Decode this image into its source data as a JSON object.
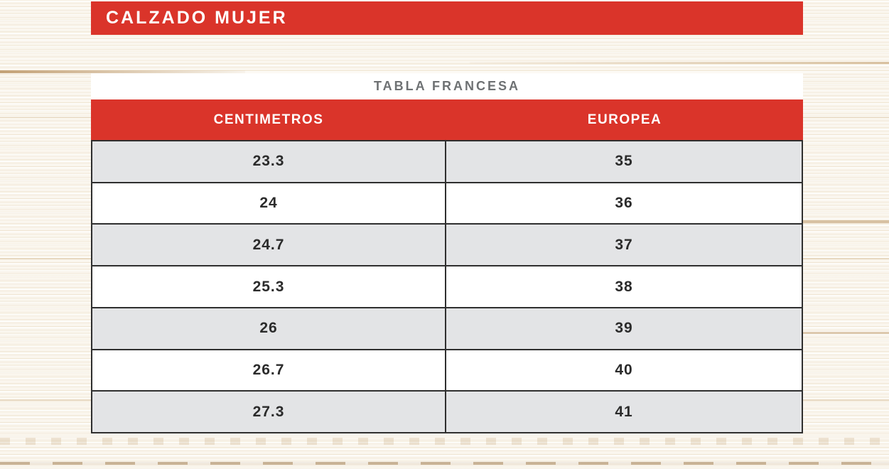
{
  "banner": {
    "title": "CALZADO MUJER"
  },
  "table": {
    "title": "TABLA FRANCESA",
    "columns": [
      "CENTIMETROS",
      "EUROPEA"
    ],
    "rows": [
      [
        "23.3",
        "35"
      ],
      [
        "24",
        "36"
      ],
      [
        "24.7",
        "37"
      ],
      [
        "25.3",
        "38"
      ],
      [
        "26",
        "39"
      ],
      [
        "26.7",
        "40"
      ],
      [
        "27.3",
        "41"
      ]
    ]
  },
  "chart_data": {
    "type": "table",
    "title": "TABLA FRANCESA",
    "columns": [
      "CENTIMETROS",
      "EUROPEA"
    ],
    "rows": [
      [
        23.3,
        35
      ],
      [
        24,
        36
      ],
      [
        24.7,
        37
      ],
      [
        25.3,
        38
      ],
      [
        26,
        39
      ],
      [
        26.7,
        40
      ],
      [
        27.3,
        41
      ]
    ]
  },
  "colors": {
    "accent_red": "#DA342A",
    "row_alt": "#E3E4E6",
    "title_gray": "#6E7173",
    "text_dark": "#2B2B2B",
    "border_dark": "#2F2F2F"
  }
}
